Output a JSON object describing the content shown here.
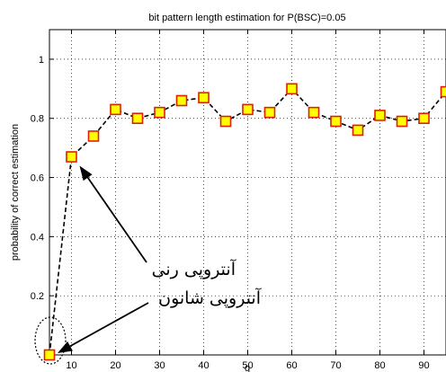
{
  "chart_data": {
    "type": "line",
    "title": "bit pattern length estimation for P(BSC)=0.05",
    "xlabel": "g",
    "ylabel": "probability of correct estimation",
    "xlim": [
      5,
      95
    ],
    "ylim": [
      0,
      1.1
    ],
    "xticks": [
      10,
      20,
      30,
      40,
      50,
      60,
      70,
      80,
      90
    ],
    "yticks": [
      0.2,
      0.4,
      0.6,
      0.8,
      1
    ],
    "xtick_labels": [
      "10",
      "20",
      "30",
      "40",
      "50",
      "60",
      "70",
      "80",
      "90"
    ],
    "ytick_labels": [
      "0.2",
      "0.4",
      "0.6",
      "0.8",
      "1"
    ],
    "grid": true,
    "line_style": "dashed",
    "marker": "square",
    "colors": {
      "line": "#000000",
      "marker_fill": "#ffff00",
      "marker_edge": "#e02000"
    },
    "x": [
      5,
      10,
      15,
      20,
      25,
      30,
      35,
      40,
      45,
      50,
      55,
      60,
      65,
      70,
      75,
      80,
      85,
      90,
      95
    ],
    "values": [
      0.0,
      0.67,
      0.74,
      0.83,
      0.8,
      0.82,
      0.86,
      0.87,
      0.79,
      0.83,
      0.82,
      0.9,
      0.82,
      0.79,
      0.76,
      0.81,
      0.79,
      0.8,
      0.89
    ],
    "annotations": [
      {
        "text": "آنتروپی رنی",
        "target": {
          "x": 10,
          "y": 0.67
        }
      },
      {
        "text": "آنتروپی شانون",
        "target": {
          "x": 5,
          "y": 0.0
        }
      }
    ]
  }
}
